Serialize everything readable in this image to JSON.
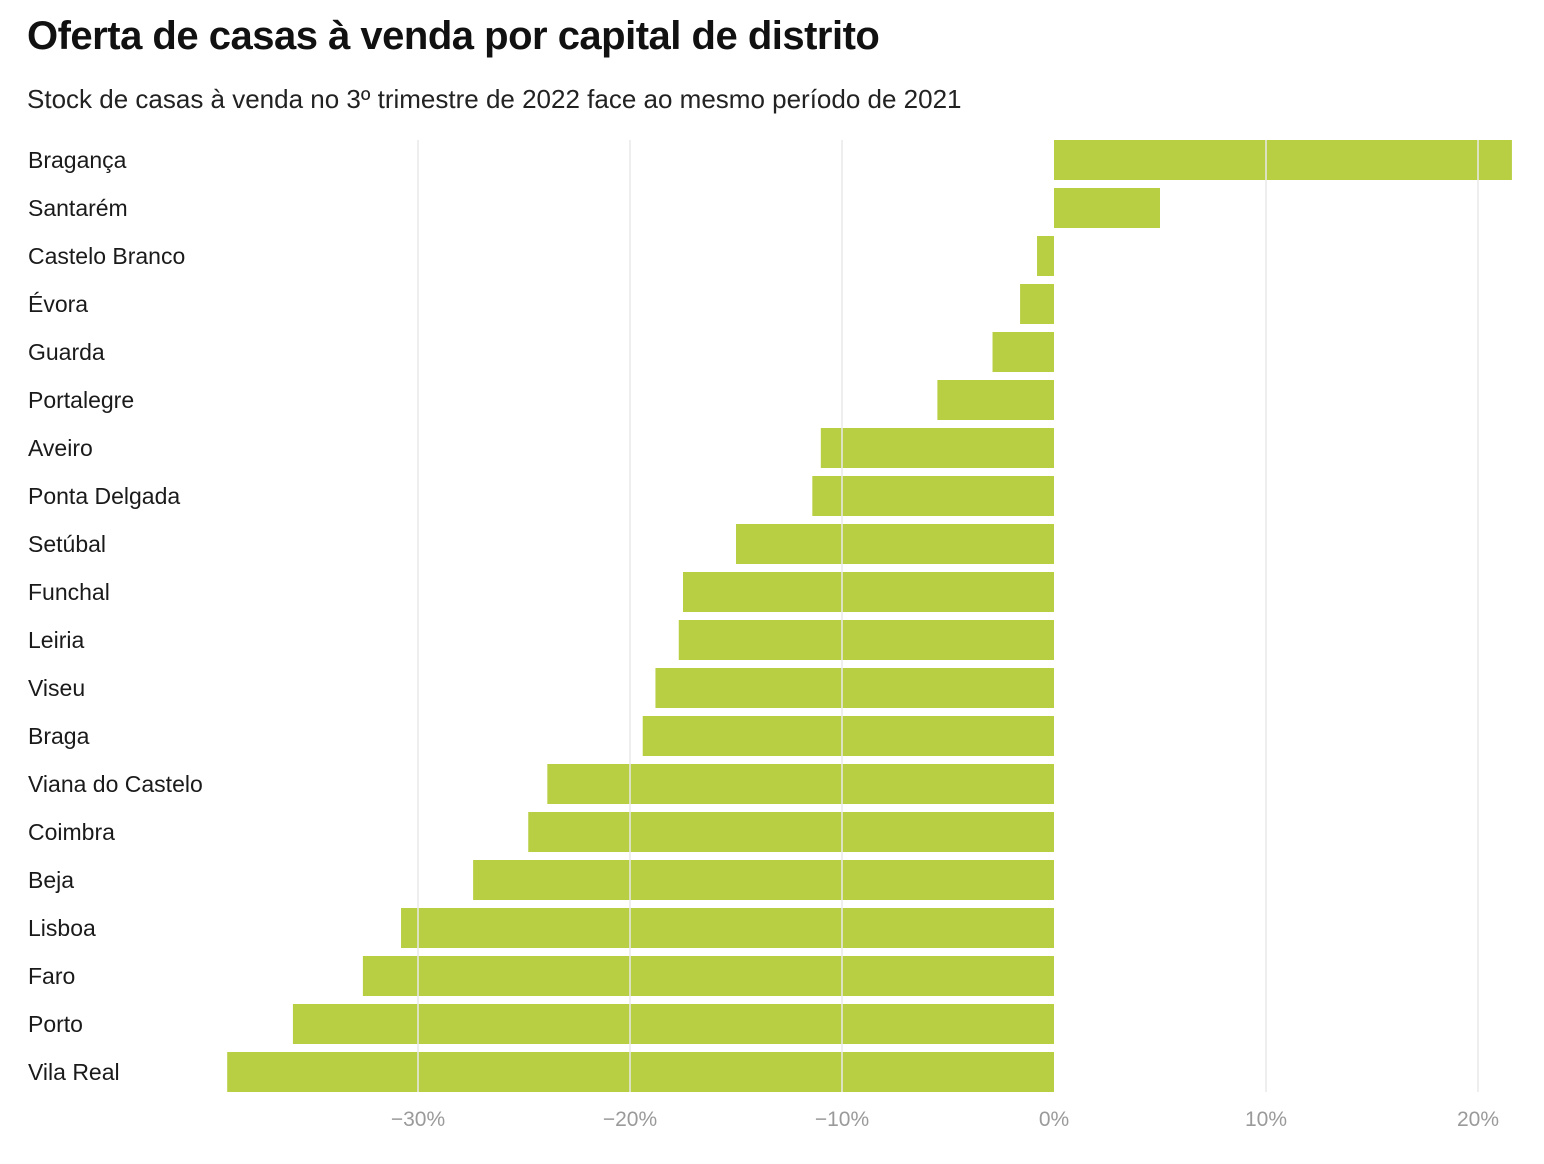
{
  "chart_data": {
    "type": "bar",
    "orientation": "horizontal",
    "title": "Oferta de casas à venda por capital de distrito",
    "subtitle": "Stock de casas à venda no 3º trimestre de 2022 face ao mesmo período de 2021",
    "categories": [
      "Bragança",
      "Santarém",
      "Castelo Branco",
      "Évora",
      "Guarda",
      "Portalegre",
      "Aveiro",
      "Ponta Delgada",
      "Setúbal",
      "Funchal",
      "Leiria",
      "Viseu",
      "Braga",
      "Viana do Castelo",
      "Coimbra",
      "Beja",
      "Lisboa",
      "Faro",
      "Porto",
      "Vila Real"
    ],
    "values": [
      21.6,
      5.0,
      -0.8,
      -1.6,
      -2.9,
      -5.5,
      -11.0,
      -11.4,
      -15.0,
      -17.5,
      -17.7,
      -18.8,
      -19.4,
      -23.9,
      -24.8,
      -27.4,
      -30.8,
      -32.6,
      -35.9,
      -39.0
    ],
    "unit": "%",
    "xlim": [
      -39,
      22
    ],
    "xticks": [
      -30,
      -20,
      -10,
      0,
      10,
      20
    ],
    "xtick_labels": [
      "−30%",
      "−20%",
      "−10%",
      "0%",
      "10%",
      "20%"
    ],
    "grid": true,
    "bar_color": "#b8cf44",
    "gridline_color": "#e8e8e8"
  }
}
